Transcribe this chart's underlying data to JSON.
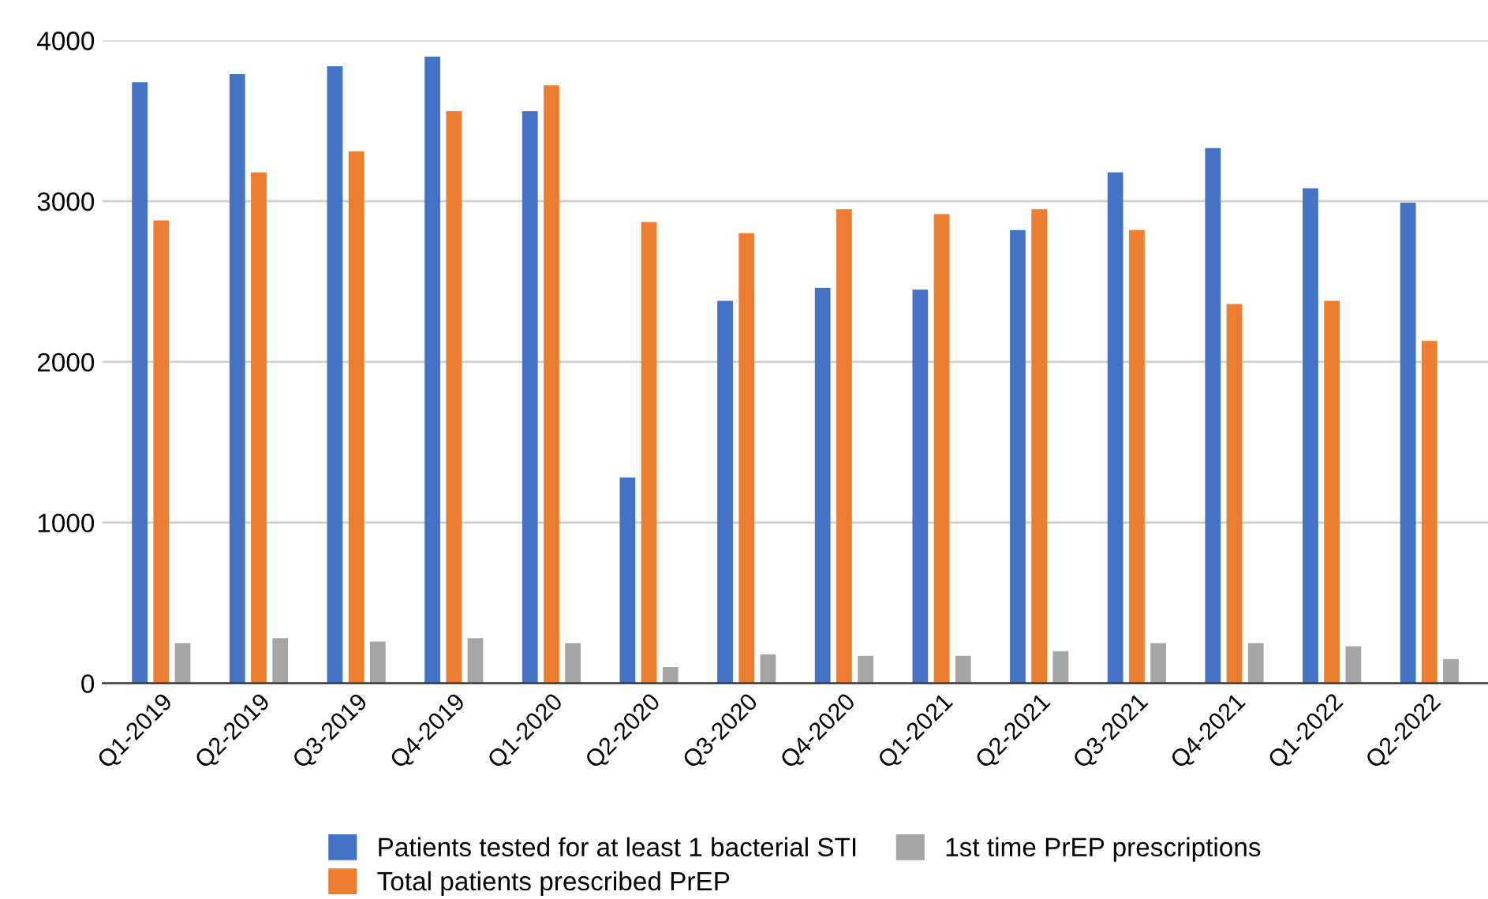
{
  "chart_data": {
    "type": "bar",
    "categories": [
      "Q1-2019",
      "Q2-2019",
      "Q3-2019",
      "Q4-2019",
      "Q1-2020",
      "Q2-2020",
      "Q3-2020",
      "Q4-2020",
      "Q1-2021",
      "Q2-2021",
      "Q3-2021",
      "Q4-2021",
      "Q1-2022",
      "Q2-2022"
    ],
    "series": [
      {
        "name": "Patients tested for at least 1 bacterial STI",
        "color": "#4472c4",
        "values": [
          3740,
          3790,
          3840,
          3900,
          3560,
          1280,
          2380,
          2460,
          2450,
          2820,
          3180,
          3330,
          3080,
          2990
        ]
      },
      {
        "name": "Total patients prescribed PrEP",
        "color": "#ed7d31",
        "values": [
          2880,
          3180,
          3310,
          3560,
          3720,
          2870,
          2800,
          2950,
          2920,
          2950,
          2820,
          2360,
          2380,
          2130
        ]
      },
      {
        "name": "1st time PrEP prescriptions",
        "color": "#a5a5a5",
        "values": [
          250,
          280,
          260,
          280,
          250,
          100,
          180,
          170,
          170,
          200,
          250,
          250,
          230,
          150
        ]
      }
    ],
    "ylim": [
      0,
      4000
    ],
    "yticks": [
      0,
      1000,
      2000,
      3000,
      4000
    ],
    "grid": "y",
    "legend": "bottom"
  }
}
